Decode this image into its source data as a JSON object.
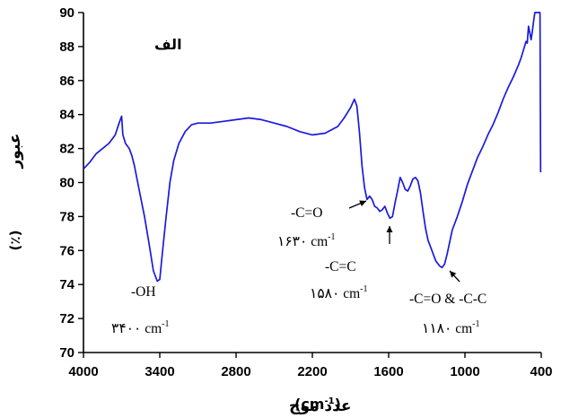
{
  "chart_data": {
    "type": "line",
    "panel_label": "الف",
    "xlabel": {
      "text": "عدد موج",
      "unit": "(cm",
      "sup": "-1",
      "close": ")"
    },
    "ylabel": {
      "text": "عبور",
      "unit": "(٪)"
    },
    "xlim": [
      4000,
      400
    ],
    "ylim": [
      70,
      90
    ],
    "xticks": [
      4000,
      3400,
      2800,
      2200,
      1600,
      1000,
      400
    ],
    "yticks": [
      70,
      72,
      74,
      76,
      78,
      80,
      82,
      84,
      86,
      88,
      90
    ],
    "grid": false,
    "line_color": "#1a1adf",
    "series": [
      {
        "points": [
          [
            4000,
            80.8
          ],
          [
            3950,
            81.2
          ],
          [
            3900,
            81.7
          ],
          [
            3850,
            82.0
          ],
          [
            3800,
            82.3
          ],
          [
            3750,
            82.8
          ],
          [
            3720,
            83.5
          ],
          [
            3700,
            83.9
          ],
          [
            3690,
            82.8
          ],
          [
            3670,
            82.3
          ],
          [
            3640,
            82.0
          ],
          [
            3620,
            81.6
          ],
          [
            3600,
            81.0
          ],
          [
            3560,
            79.5
          ],
          [
            3520,
            78.0
          ],
          [
            3480,
            76.2
          ],
          [
            3450,
            74.8
          ],
          [
            3420,
            74.2
          ],
          [
            3400,
            74.3
          ],
          [
            3380,
            75.8
          ],
          [
            3350,
            78.0
          ],
          [
            3320,
            80.0
          ],
          [
            3290,
            81.3
          ],
          [
            3250,
            82.3
          ],
          [
            3200,
            83.0
          ],
          [
            3150,
            83.4
          ],
          [
            3100,
            83.5
          ],
          [
            3000,
            83.5
          ],
          [
            2900,
            83.6
          ],
          [
            2800,
            83.7
          ],
          [
            2700,
            83.8
          ],
          [
            2600,
            83.7
          ],
          [
            2500,
            83.5
          ],
          [
            2400,
            83.3
          ],
          [
            2300,
            83.0
          ],
          [
            2200,
            82.8
          ],
          [
            2100,
            82.9
          ],
          [
            2000,
            83.3
          ],
          [
            1950,
            83.8
          ],
          [
            1900,
            84.4
          ],
          [
            1870,
            84.9
          ],
          [
            1850,
            84.5
          ],
          [
            1830,
            83.0
          ],
          [
            1810,
            81.0
          ],
          [
            1790,
            79.7
          ],
          [
            1770,
            79.0
          ],
          [
            1750,
            79.2
          ],
          [
            1730,
            79.0
          ],
          [
            1710,
            78.6
          ],
          [
            1690,
            78.5
          ],
          [
            1670,
            78.3
          ],
          [
            1650,
            78.4
          ],
          [
            1630,
            78.6
          ],
          [
            1610,
            78.2
          ],
          [
            1590,
            77.9
          ],
          [
            1570,
            78.0
          ],
          [
            1550,
            78.8
          ],
          [
            1530,
            79.5
          ],
          [
            1510,
            80.3
          ],
          [
            1490,
            80.0
          ],
          [
            1470,
            79.6
          ],
          [
            1450,
            79.5
          ],
          [
            1430,
            79.8
          ],
          [
            1410,
            80.2
          ],
          [
            1390,
            80.3
          ],
          [
            1370,
            80.1
          ],
          [
            1350,
            79.4
          ],
          [
            1330,
            78.3
          ],
          [
            1310,
            77.3
          ],
          [
            1290,
            76.6
          ],
          [
            1260,
            76.0
          ],
          [
            1230,
            75.4
          ],
          [
            1200,
            75.1
          ],
          [
            1180,
            75.0
          ],
          [
            1160,
            75.2
          ],
          [
            1140,
            75.8
          ],
          [
            1120,
            76.5
          ],
          [
            1100,
            77.2
          ],
          [
            1060,
            78.0
          ],
          [
            1020,
            78.9
          ],
          [
            980,
            79.9
          ],
          [
            940,
            80.7
          ],
          [
            900,
            81.5
          ],
          [
            860,
            82.1
          ],
          [
            820,
            82.8
          ],
          [
            780,
            83.4
          ],
          [
            740,
            84.1
          ],
          [
            700,
            84.9
          ],
          [
            660,
            85.6
          ],
          [
            620,
            86.2
          ],
          [
            580,
            86.9
          ],
          [
            560,
            87.3
          ],
          [
            540,
            87.8
          ],
          [
            520,
            88.3
          ],
          [
            510,
            88.2
          ],
          [
            500,
            89.2
          ],
          [
            490,
            88.8
          ],
          [
            480,
            88.4
          ],
          [
            470,
            88.9
          ],
          [
            460,
            89.5
          ],
          [
            450,
            90.0
          ],
          [
            440,
            90.0
          ],
          [
            420,
            90.0
          ],
          [
            410,
            90.0
          ],
          [
            405,
            80.6
          ]
        ]
      }
    ],
    "annotations": [
      {
        "label": "-OH",
        "value": "۳۴۰۰",
        "unit": "cm",
        "sup": "-1"
      },
      {
        "label": "-C=O",
        "value": "۱۶۳۰",
        "unit": "cm",
        "sup": "-1"
      },
      {
        "label": "-C=C",
        "value": "۱۵۸۰",
        "unit": "cm",
        "sup": "-1"
      },
      {
        "label": "-C=O & -C-C",
        "value": "۱۱۸۰",
        "unit": "cm",
        "sup": "-1"
      }
    ]
  }
}
